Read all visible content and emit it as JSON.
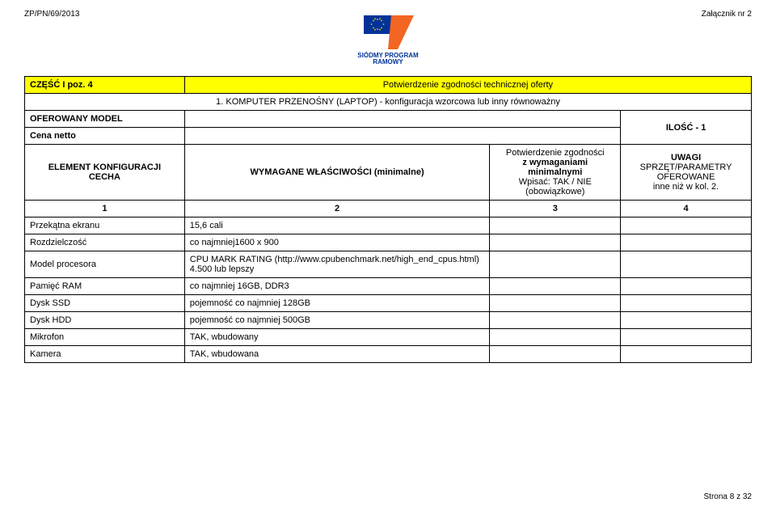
{
  "header": {
    "doc_ref": "ZP/PN/69/2013",
    "attachment": "Załącznik nr 2",
    "logo": {
      "line1": "SIÓDMY PROGRAM",
      "line2": "RAMOWY",
      "flag_bg": "#003399",
      "seven_color": "#f26522"
    }
  },
  "section": {
    "part": "CZĘŚĆ I poz. 4",
    "title": "Potwierdzenie zgodności technicznej oferty",
    "subtitle": "1. KOMPUTER PRZENOŚNY (LAPTOP) - konfiguracja wzorcowa lub inny równoważny",
    "offered_model": "OFEROWANY MODEL",
    "qty_label": "ILOŚĆ - 1",
    "netto": "Cena netto"
  },
  "columns": {
    "c1": {
      "l1": "ELEMENT KONFIGURACJI",
      "l2": "CECHA",
      "num": "1",
      "width": "22%"
    },
    "c2": {
      "l1": "WYMAGANE WŁAŚCIWOŚCI (minimalne)",
      "num": "2",
      "width": "42%"
    },
    "c3": {
      "l1": "Potwierdzenie zgodności",
      "l2": "z wymaganiami minimalnymi",
      "l3": "Wpisać: TAK / NIE (obowiązkowe)",
      "num": "3",
      "width": "18%"
    },
    "c4": {
      "l1": "UWAGI",
      "l2": "SPRZĘT/PARAMETRY OFEROWANE",
      "l3": "inne niż w kol. 2.",
      "num": "4",
      "width": "18%"
    }
  },
  "rows": [
    {
      "label": "Przekątna ekranu",
      "req": "15,6 cali"
    },
    {
      "label": "Rozdzielczość",
      "req": "co najmniej1600 x 900"
    },
    {
      "label": "Model procesora",
      "req": "CPU MARK RATING  (http://www.cpubenchmark.net/high_end_cpus.html) 4.500  lub lepszy"
    },
    {
      "label": "Pamięć RAM",
      "req": "co najmniej 16GB, DDR3"
    },
    {
      "label": "Dysk SSD",
      "req": "pojemność co najmniej 128GB"
    },
    {
      "label": "Dysk HDD",
      "req": "pojemność co najmniej 500GB"
    },
    {
      "label": "Mikrofon",
      "req": "TAK, wbudowany"
    },
    {
      "label": "Kamera",
      "req": "TAK, wbudowana"
    }
  ],
  "footer": "Strona 8 z 32"
}
